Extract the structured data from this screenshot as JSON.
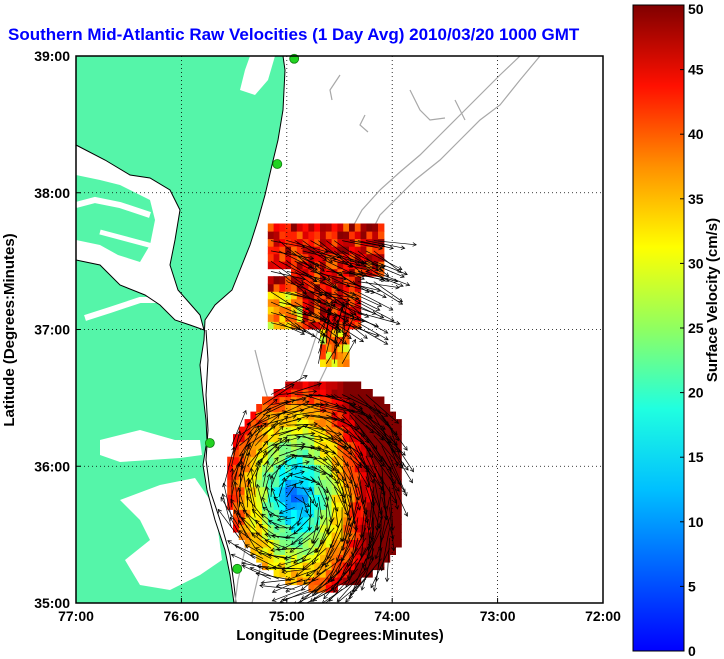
{
  "chart_data": {
    "type": "heatmap",
    "title": "Southern Mid-Atlantic Raw Velocities (1 Day Avg) 2010/03/20 1000 GMT",
    "xlabel": "Longitude (Degrees:Minutes)",
    "ylabel": "Latitude (Degrees:Minutes)",
    "colorbar_label": "Surface Velocity (cm/s)",
    "xlim": [
      -77,
      -72
    ],
    "ylim": [
      35,
      39
    ],
    "clim": [
      0,
      50
    ],
    "grid": true,
    "x_ticks": [
      -77,
      -76,
      -75,
      -74,
      -73,
      -72
    ],
    "x_tick_labels": [
      "77:00",
      "76:00",
      "75:00",
      "74:00",
      "73:00",
      "72:00"
    ],
    "y_ticks": [
      35,
      36,
      37,
      38,
      39
    ],
    "y_tick_labels": [
      "35:00",
      "36:00",
      "37:00",
      "38:00",
      "39:00"
    ],
    "colorbar_ticks": [
      0,
      5,
      10,
      15,
      20,
      25,
      30,
      35,
      40,
      45,
      50
    ],
    "colorbar_tick_labels": [
      "0",
      "5",
      "10",
      "15",
      "20",
      "25",
      "30",
      "35",
      "40",
      "45",
      "50"
    ],
    "colormap": "jet",
    "colors": {
      "land": "#55f5a9",
      "water": "#ffffff",
      "title": "#0000ff",
      "station": "#22d322",
      "bathymetry": "#a8a8a8",
      "vectors": "#000000"
    },
    "stations": [
      {
        "lon": -74.93,
        "lat": 38.98
      },
      {
        "lon": -75.09,
        "lat": 38.21
      },
      {
        "lon": -75.73,
        "lat": 36.17
      },
      {
        "lon": -75.47,
        "lat": 35.25
      }
    ],
    "velocity_fields": [
      {
        "region": "north",
        "lon_range": [
          -75.2,
          -74.1
        ],
        "lat_range": [
          36.98,
          37.72
        ],
        "speed_cm_s": [
          30,
          50
        ]
      },
      {
        "region": "channel",
        "lon_range": [
          -74.75,
          -74.45
        ],
        "lat_range": [
          36.7,
          37.0
        ],
        "speed_cm_s": [
          25,
          45
        ]
      },
      {
        "region": "south",
        "lon_range": [
          -75.6,
          -73.9
        ],
        "lat_range": [
          35.08,
          36.6
        ],
        "speed_cm_s": [
          8,
          50
        ]
      }
    ]
  }
}
